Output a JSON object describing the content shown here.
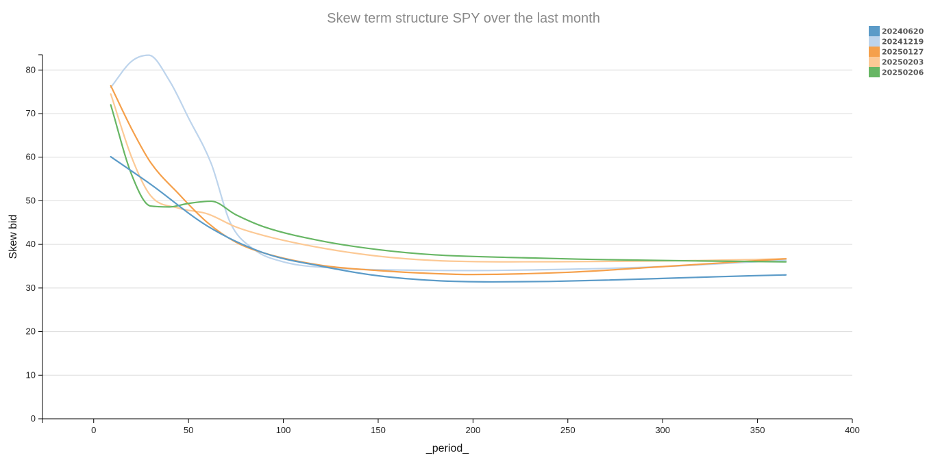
{
  "chart_data": {
    "type": "line",
    "title": "Skew term structure SPY over the last month",
    "xlabel": "_period_",
    "ylabel": "Skew bid",
    "xlim": [
      -27,
      400
    ],
    "ylim": [
      0,
      83.5
    ],
    "xticks": [
      0,
      50,
      100,
      150,
      200,
      250,
      300,
      350,
      400
    ],
    "yticks": [
      0,
      10,
      20,
      30,
      40,
      50,
      60,
      70,
      80
    ],
    "grid": "horizontal",
    "legend_position": "top-right",
    "series": [
      {
        "name": "20240620",
        "color": "#5b9bc8",
        "x": [
          9,
          30,
          60,
          90,
          120,
          150,
          180,
          210,
          240,
          270,
          300,
          330,
          365
        ],
        "y": [
          60.1,
          53.8,
          44.2,
          38.0,
          35.0,
          32.8,
          31.7,
          31.4,
          31.5,
          31.8,
          32.2,
          32.6,
          33.0
        ]
      },
      {
        "name": "20241219",
        "color": "#bdd4ec",
        "x": [
          9,
          20,
          29,
          40,
          50,
          62,
          72,
          84,
          100,
          130,
          165,
          200,
          250,
          300,
          365
        ],
        "y": [
          76.0,
          82.0,
          83.4,
          77.5,
          69.0,
          58.5,
          45.0,
          39.0,
          36.0,
          34.5,
          34.1,
          34.0,
          34.3,
          34.9,
          36.4
        ]
      },
      {
        "name": "20250127",
        "color": "#f5a04b",
        "x": [
          9,
          20,
          30,
          45,
          60,
          75,
          90,
          120,
          150,
          180,
          200,
          250,
          300,
          365
        ],
        "y": [
          76.4,
          66.5,
          58.8,
          51.5,
          45.0,
          40.5,
          38.0,
          35.2,
          34.0,
          33.3,
          33.1,
          33.6,
          34.9,
          36.7
        ]
      },
      {
        "name": "20250203",
        "color": "#fcc995",
        "x": [
          9,
          20,
          30,
          45,
          60,
          75,
          90,
          120,
          150,
          180,
          220,
          270,
          320,
          365
        ],
        "y": [
          74.5,
          60.0,
          51.2,
          48.3,
          47.0,
          44.0,
          42.0,
          39.2,
          37.3,
          36.3,
          36.0,
          36.1,
          36.3,
          36.7
        ]
      },
      {
        "name": "20250206",
        "color": "#67b664",
        "x": [
          9,
          20,
          30,
          40,
          50,
          62,
          75,
          90,
          120,
          150,
          180,
          220,
          270,
          320,
          365
        ],
        "y": [
          72.0,
          56.0,
          48.8,
          48.6,
          49.4,
          49.9,
          46.8,
          44.0,
          40.8,
          38.8,
          37.6,
          37.0,
          36.5,
          36.2,
          36.0
        ]
      }
    ]
  }
}
